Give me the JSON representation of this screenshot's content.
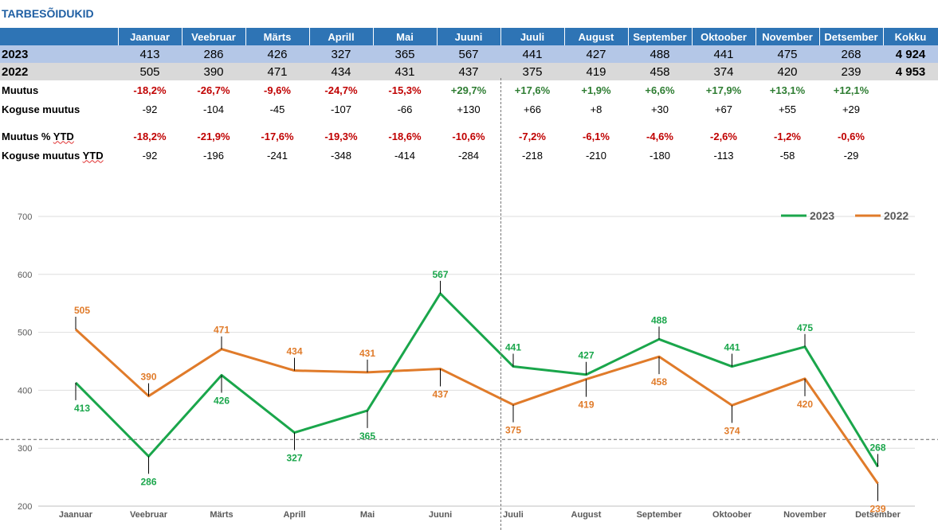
{
  "title": "TARBESÕIDUKID",
  "table": {
    "months": [
      "Jaanuar",
      "Veebruar",
      "Märts",
      "Aprill",
      "Mai",
      "Juuni",
      "Juuli",
      "August",
      "September",
      "Oktoober",
      "November",
      "Detsember"
    ],
    "total_header": "Kokku",
    "rows": {
      "y2023": {
        "label": "2023",
        "values": [
          "413",
          "286",
          "426",
          "327",
          "365",
          "567",
          "441",
          "427",
          "488",
          "441",
          "475",
          "268"
        ],
        "total": "4 924"
      },
      "y2022": {
        "label": "2022",
        "values": [
          "505",
          "390",
          "471",
          "434",
          "431",
          "437",
          "375",
          "419",
          "458",
          "374",
          "420",
          "239"
        ],
        "total": "4 953"
      },
      "muutus": {
        "label": "Muutus",
        "values": [
          "-18,2%",
          "-26,7%",
          "-9,6%",
          "-24,7%",
          "-15,3%",
          "+29,7%",
          "+17,6%",
          "+1,9%",
          "+6,6%",
          "+17,9%",
          "+13,1%",
          "+12,1%"
        ]
      },
      "koguse_muutus": {
        "label": "Koguse muutus",
        "values": [
          "-92",
          "-104",
          "-45",
          "-107",
          "-66",
          "+130",
          "+66",
          "+8",
          "+30",
          "+67",
          "+55",
          "+29"
        ]
      },
      "muutus_ytd": {
        "label_main": "Muutus %",
        "label_tail": "YTD",
        "values": [
          "-18,2%",
          "-21,9%",
          "-17,6%",
          "-19,3%",
          "-18,6%",
          "-10,6%",
          "-7,2%",
          "-6,1%",
          "-4,6%",
          "-2,6%",
          "-1,2%",
          "-0,6%"
        ]
      },
      "koguse_muutus_ytd": {
        "label_main": "Koguse muutus",
        "label_tail": "YTD",
        "values": [
          "-92",
          "-196",
          "-241",
          "-348",
          "-414",
          "-284",
          "-218",
          "-210",
          "-180",
          "-113",
          "-58",
          "-29"
        ]
      }
    }
  },
  "chart_data": {
    "type": "line",
    "categories": [
      "Jaanuar",
      "Veebruar",
      "Märts",
      "Aprill",
      "Mai",
      "Juuni",
      "Juuli",
      "August",
      "September",
      "Oktoober",
      "November",
      "Detsember"
    ],
    "series": [
      {
        "name": "2023",
        "color": "#1aa64b",
        "values": [
          413,
          286,
          426,
          327,
          365,
          567,
          441,
          427,
          488,
          441,
          475,
          268
        ]
      },
      {
        "name": "2022",
        "color": "#e07b2a",
        "values": [
          505,
          390,
          471,
          434,
          431,
          437,
          375,
          419,
          458,
          374,
          420,
          239
        ]
      }
    ],
    "ylim": [
      200,
      700
    ],
    "yticks": [
      200,
      300,
      400,
      500,
      600,
      700
    ],
    "grid": true,
    "legend": "top-right",
    "reference_line": 315
  }
}
